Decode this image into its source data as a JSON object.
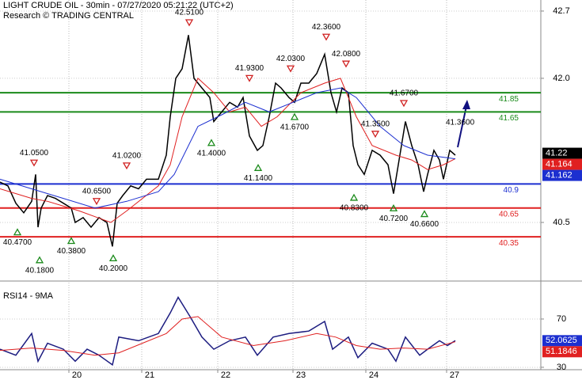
{
  "chart_data": [
    {
      "type": "line",
      "title": "LIGHT CRUDE OIL - 30min - 07/27/2020 05:21:22 (UTC+2)",
      "subtitle": "Research © TRADING CENTRAL",
      "xlim": [
        0,
        341.5
      ],
      "ylim": [
        39.89,
        42.815
      ],
      "yticks": [
        40.5,
        {
          "value": 42,
          "label": "42.0"
        },
        42.7
      ],
      "series": [
        {
          "color": "#000000",
          "x": [
            0,
            5,
            10,
            15,
            20,
            22.5,
            24,
            26,
            30,
            35,
            40,
            45,
            47.5,
            52.5,
            57.5,
            62.5,
            67.5,
            71,
            74,
            77.5,
            82.5,
            87.5,
            92.5,
            100,
            105,
            107.5,
            111,
            115,
            119,
            122.5,
            127.5,
            132.5,
            135,
            140,
            145,
            150,
            153.5,
            157.5,
            162.5,
            166,
            170,
            174,
            177.5,
            182.5,
            186,
            190,
            195,
            200,
            205,
            209,
            212.5,
            216,
            220,
            223,
            226,
            230,
            235,
            240,
            245,
            248.5,
            252.5,
            256,
            260,
            264,
            267.5,
            270,
            274,
            277.5,
            280,
            284,
            287.5
          ],
          "values": [
            40.92,
            40.88,
            40.7,
            40.6,
            40.72,
            41.0,
            40.45,
            40.65,
            40.78,
            40.75,
            40.7,
            40.65,
            40.5,
            40.55,
            40.45,
            40.55,
            40.5,
            40.25,
            40.7,
            40.78,
            40.88,
            40.85,
            40.95,
            40.95,
            41.2,
            41.6,
            42.0,
            42.1,
            42.45,
            42.0,
            41.9,
            41.8,
            41.55,
            41.65,
            41.75,
            41.7,
            41.8,
            41.4,
            41.25,
            41.3,
            41.6,
            41.95,
            41.9,
            41.8,
            41.75,
            41.95,
            41.95,
            42.05,
            42.25,
            41.85,
            41.65,
            41.9,
            41.85,
            41.3,
            41.1,
            41.0,
            41.25,
            41.2,
            41.1,
            40.8,
            41.2,
            41.55,
            41.3,
            41.1,
            40.82,
            41.0,
            41.25,
            41.15,
            40.95,
            41.25,
            41.2
          ]
        },
        {
          "color": "#e02020",
          "x": [
            0,
            20,
            30,
            50,
            70,
            80,
            100,
            107.5,
            115,
            125,
            135,
            145,
            155,
            165,
            175,
            190,
            205,
            215,
            225,
            235,
            250,
            260,
            270,
            280,
            287.5
          ],
          "values": [
            40.85,
            40.75,
            40.72,
            40.62,
            40.5,
            40.62,
            40.88,
            41.1,
            41.6,
            42.0,
            41.85,
            41.65,
            41.7,
            41.5,
            41.6,
            41.85,
            41.95,
            42.0,
            41.6,
            41.3,
            41.2,
            41.15,
            41.05,
            41.1,
            41.164
          ]
        },
        {
          "color": "#1c2fd0",
          "x": [
            0,
            20,
            40,
            60,
            80,
            100,
            110,
            125,
            140,
            155,
            170,
            185,
            200,
            215,
            225,
            240,
            255,
            270,
            287.5
          ],
          "values": [
            40.95,
            40.85,
            40.75,
            40.65,
            40.72,
            40.82,
            41.0,
            41.5,
            41.62,
            41.75,
            41.65,
            41.75,
            41.85,
            41.9,
            41.8,
            41.5,
            41.3,
            41.2,
            41.162
          ]
        }
      ],
      "levels": [
        {
          "value": 41.85,
          "color": "#1a8a1a"
        },
        {
          "value": 41.65,
          "color": "#1a8a1a"
        },
        {
          "value": 40.9,
          "color": "#1c2fd0"
        },
        {
          "value": 40.65,
          "color": "#e02020"
        },
        {
          "value": 40.35,
          "color": "#e02020"
        }
      ],
      "annotations": [
        {
          "x": 21.5,
          "value": 41.05,
          "label": "41.0500",
          "dir": "down"
        },
        {
          "x": 11,
          "value": 40.47,
          "label": "40.4700",
          "dir": "up"
        },
        {
          "x": 25,
          "value": 40.18,
          "label": "40.1800",
          "dir": "up"
        },
        {
          "x": 45,
          "value": 40.38,
          "label": "40.3800",
          "dir": "up"
        },
        {
          "x": 71.5,
          "value": 40.2,
          "label": "40.2000",
          "dir": "up"
        },
        {
          "x": 61,
          "value": 40.65,
          "label": "40.6500",
          "dir": "down"
        },
        {
          "x": 80,
          "value": 41.02,
          "label": "41.0200",
          "dir": "down"
        },
        {
          "x": 119.5,
          "value": 42.51,
          "label": "42.5100",
          "dir": "down"
        },
        {
          "x": 157.5,
          "value": 41.93,
          "label": "41.9300",
          "dir": "down"
        },
        {
          "x": 133.5,
          "value": 41.4,
          "label": "41.4000",
          "dir": "up"
        },
        {
          "x": 183.5,
          "value": 42.03,
          "label": "42.0300",
          "dir": "down"
        },
        {
          "x": 186,
          "value": 41.67,
          "label": "41.6700",
          "dir": "up"
        },
        {
          "x": 163,
          "value": 41.14,
          "label": "41.1400",
          "dir": "up"
        },
        {
          "x": 206,
          "value": 42.36,
          "label": "42.3600",
          "dir": "down"
        },
        {
          "x": 218.5,
          "value": 42.08,
          "label": "42.0800",
          "dir": "down"
        },
        {
          "x": 237,
          "value": 41.35,
          "label": "41.3500",
          "dir": "down"
        },
        {
          "x": 255,
          "value": 41.67,
          "label": "41.6700",
          "dir": "down"
        },
        {
          "x": 223.5,
          "value": 40.83,
          "label": "40.8300",
          "dir": "up"
        },
        {
          "x": 248.5,
          "value": 40.72,
          "label": "40.7200",
          "dir": "up"
        },
        {
          "x": 268,
          "value": 40.66,
          "label": "40.6600",
          "dir": "up"
        }
      ],
      "target_label": "41.3600",
      "last_values": [
        {
          "value": 41.22,
          "color": "#000000"
        },
        {
          "value": 41.164,
          "color": "#e02020"
        },
        {
          "value": 41.162,
          "color": "#1c2fd0"
        }
      ]
    },
    {
      "type": "line",
      "title": "RSI14 - 9MA",
      "xlim": [
        0,
        341.5
      ],
      "ylim": [
        28,
        94.9
      ],
      "yticks": [
        30,
        70
      ],
      "xticks": [
        {
          "value": 43.5,
          "label": "20"
        },
        {
          "value": 89.5,
          "label": "21"
        },
        {
          "value": 137.5,
          "label": "22"
        },
        {
          "value": 185,
          "label": "23"
        },
        {
          "value": 231,
          "label": "24"
        },
        {
          "value": 282,
          "label": "27"
        }
      ],
      "series": [
        {
          "color": "#1c1c80",
          "x": [
            0,
            10,
            20,
            24,
            30,
            40,
            47.5,
            55,
            62.5,
            71,
            75,
            87.5,
            100,
            107.5,
            112.5,
            120,
            127.5,
            135,
            145,
            155,
            162.5,
            172.5,
            182.5,
            195,
            205,
            210,
            220,
            226,
            235,
            245,
            250,
            256,
            265,
            270,
            277.5,
            282.5,
            287.5
          ],
          "values": [
            45,
            40,
            58,
            35,
            50,
            45,
            35,
            45,
            40,
            32,
            55,
            52,
            58,
            75,
            88,
            72,
            55,
            45,
            52,
            55,
            40,
            55,
            58,
            60,
            68,
            45,
            55,
            38,
            50,
            45,
            35,
            55,
            40,
            45,
            52,
            48,
            52.0625
          ]
        },
        {
          "color": "#e02020",
          "x": [
            0,
            20,
            40,
            60,
            75,
            90,
            105,
            115,
            125,
            140,
            160,
            180,
            200,
            212,
            225,
            240,
            255,
            270,
            287.5
          ],
          "values": [
            44,
            46,
            44,
            40,
            42,
            50,
            58,
            70,
            72,
            55,
            48,
            52,
            58,
            55,
            48,
            45,
            46,
            45,
            51.1846
          ]
        }
      ],
      "last_values": [
        {
          "value": 52.0625,
          "color": "#1c2fd0"
        },
        {
          "value": 51.1846,
          "color": "#e02020"
        }
      ]
    }
  ]
}
